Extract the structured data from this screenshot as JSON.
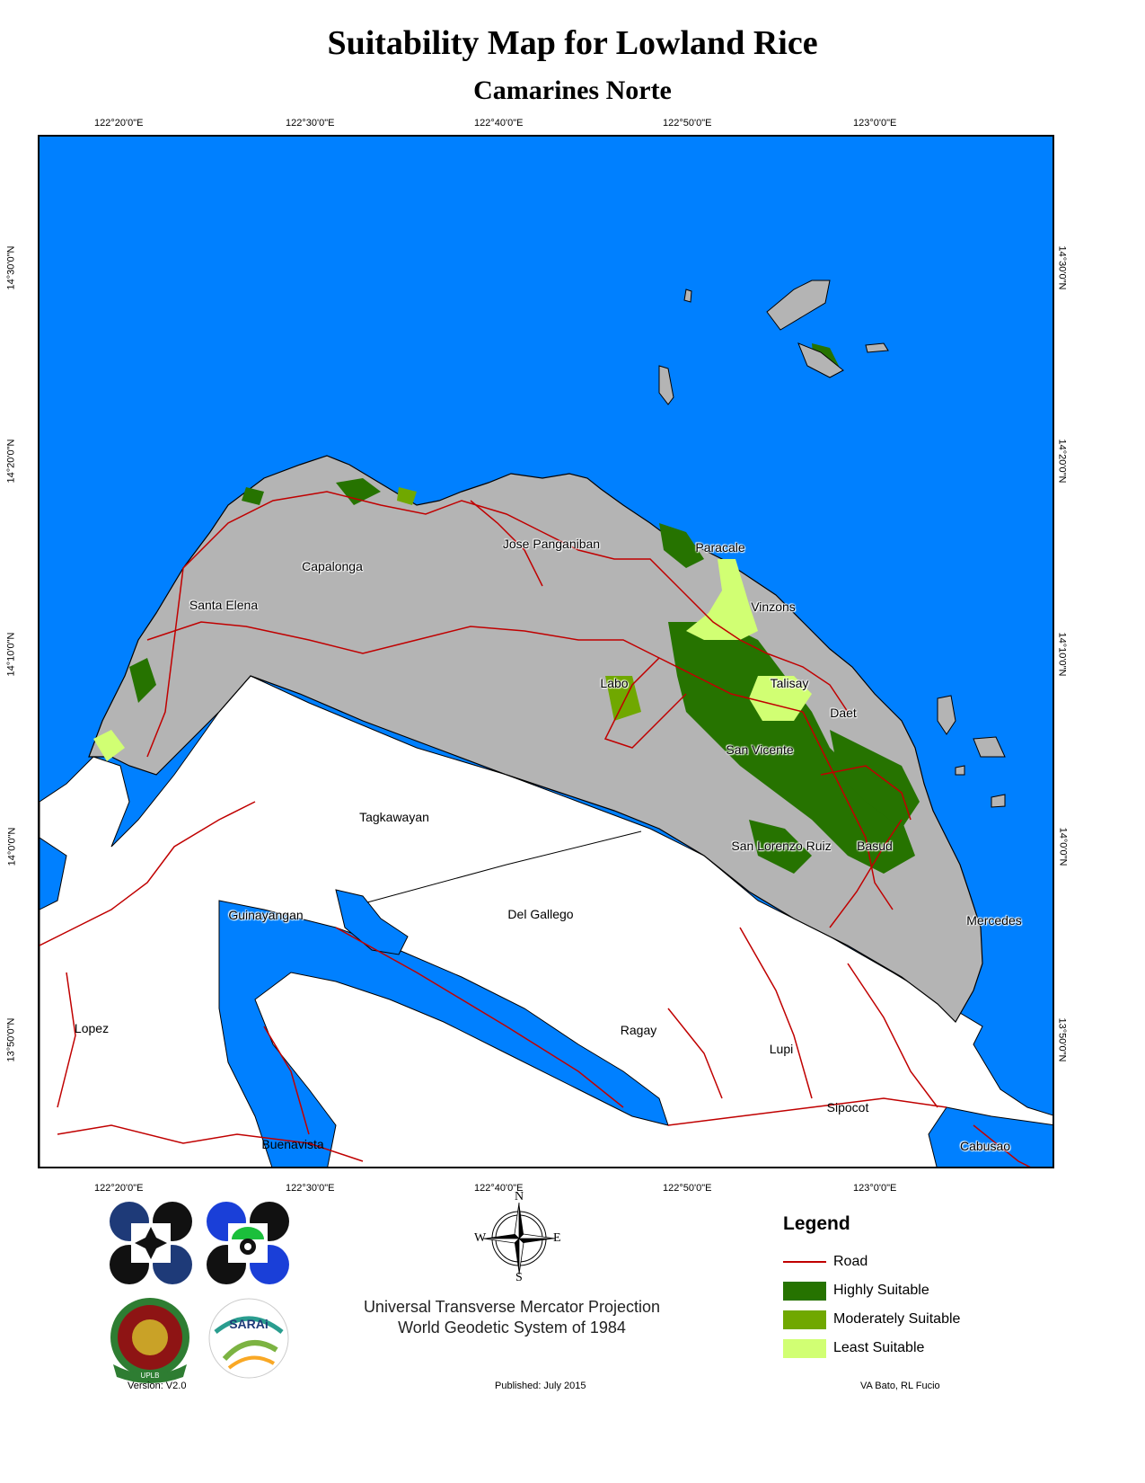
{
  "title": "Suitability Map for Lowland Rice",
  "subtitle": "Camarines Norte",
  "graticule": {
    "longitudes": [
      "122°20'0\"E",
      "122°30'0\"E",
      "122°40'0\"E",
      "122°50'0\"E",
      "123°0'0\"E"
    ],
    "latitudes": [
      "14°30'0\"N",
      "14°20'0\"N",
      "14°10'0\"N",
      "14°0'0\"N",
      "13°50'0\"N"
    ]
  },
  "places": {
    "jose_panganiban": "Jose Panganiban",
    "paracale": "Paracale",
    "capalonga": "Capalonga",
    "santa_elena": "Santa Elena",
    "vinzons": "Vinzons",
    "labo": "Labo",
    "talisay": "Talisay",
    "daet": "Daet",
    "san_vicente": "San Vicente",
    "tagkawayan": "Tagkawayan",
    "san_lorenzo_ruiz": "San Lorenzo Ruiz",
    "basud": "Basud",
    "guinayangan": "Guinayangan",
    "del_gallego": "Del Gallego",
    "mercedes": "Mercedes",
    "lopez": "Lopez",
    "ragay": "Ragay",
    "lupi": "Lupi",
    "sipocot": "Sipocot",
    "buenavista": "Buenavista",
    "cabusao": "Cabusao"
  },
  "compass": {
    "n": "N",
    "s": "S",
    "e": "E",
    "w": "W"
  },
  "projection": {
    "line1": "Universal Transverse Mercator Projection",
    "line2": "World Geodetic System of 1984"
  },
  "legend": {
    "title": "Legend",
    "items": [
      {
        "label": "Road",
        "color": "#c00000",
        "kind": "line"
      },
      {
        "label": "Highly Suitable",
        "color": "#267300",
        "kind": "fill"
      },
      {
        "label": "Moderately Suitable",
        "color": "#70a800",
        "kind": "fill"
      },
      {
        "label": "Least Suitable",
        "color": "#d1ff73",
        "kind": "fill"
      }
    ]
  },
  "colors": {
    "sea": "#0080ff",
    "land": "#b4b4b4",
    "neighbor_land": "#ffffff",
    "road": "#c00000"
  },
  "footer": {
    "version": "Version: V2.0",
    "published": "Published: July 2015",
    "authors": "VA Bato, RL Fucio"
  },
  "logos": {
    "uplb_text": "UPLB",
    "sarai_text": "SARAi"
  }
}
